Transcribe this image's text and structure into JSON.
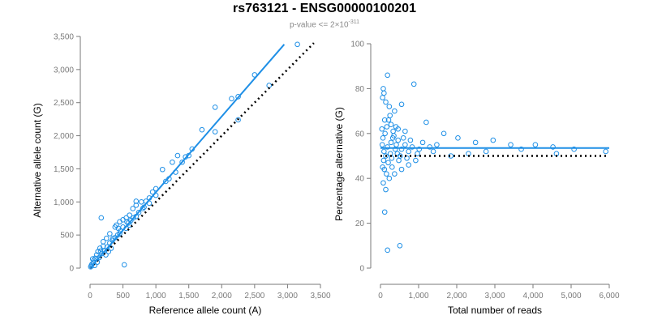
{
  "title": "rs763121 - ENSG00000100201",
  "subtitle": {
    "prefix": "p-value <= 2×10",
    "exponent": "-311"
  },
  "colors": {
    "points": "#1e8fe6",
    "fit_line": "#1e8fe6",
    "reference_line": "#000000"
  },
  "chart_data": [
    {
      "type": "scatter",
      "xlabel": "Reference allele count (A)",
      "ylabel": "Alternative allele count (G)",
      "xlim": [
        0,
        3500
      ],
      "ylim": [
        0,
        3500
      ],
      "x_ticks": [
        "0",
        "500",
        "1,000",
        "1,500",
        "2,000",
        "2,500",
        "3,000",
        "3,500"
      ],
      "y_ticks": [
        "0",
        "500",
        "1,000",
        "1,500",
        "2,000",
        "2,500",
        "3,000",
        "3,500"
      ],
      "fit_line": {
        "x": [
          0,
          2950
        ],
        "y": [
          0,
          3380
        ]
      },
      "reference_line": {
        "x": [
          0,
          3400
        ],
        "y": [
          0,
          3400
        ]
      },
      "points": [
        [
          3150,
          3380
        ],
        [
          2500,
          2920
        ],
        [
          2720,
          2760
        ],
        [
          2250,
          2590
        ],
        [
          2150,
          2560
        ],
        [
          1900,
          2430
        ],
        [
          1700,
          2090
        ],
        [
          1900,
          2060
        ],
        [
          2250,
          2240
        ],
        [
          1550,
          1800
        ],
        [
          1450,
          1680
        ],
        [
          1330,
          1700
        ],
        [
          1250,
          1600
        ],
        [
          1100,
          1490
        ],
        [
          1150,
          1310
        ],
        [
          1000,
          1200
        ],
        [
          950,
          1150
        ],
        [
          900,
          1060
        ],
        [
          850,
          1010
        ],
        [
          780,
          1000
        ],
        [
          700,
          1010
        ],
        [
          700,
          950
        ],
        [
          650,
          900
        ],
        [
          600,
          800
        ],
        [
          550,
          760
        ],
        [
          500,
          730
        ],
        [
          450,
          700
        ],
        [
          400,
          650
        ],
        [
          380,
          620
        ],
        [
          170,
          760
        ],
        [
          520,
          50
        ],
        [
          300,
          520
        ],
        [
          250,
          450
        ],
        [
          200,
          400
        ],
        [
          150,
          300
        ],
        [
          100,
          200
        ],
        [
          60,
          120
        ],
        [
          30,
          60
        ],
        [
          350,
          450
        ],
        [
          450,
          520
        ],
        [
          550,
          600
        ],
        [
          600,
          650
        ],
        [
          700,
          780
        ],
        [
          800,
          900
        ],
        [
          900,
          980
        ],
        [
          1000,
          1100
        ],
        [
          1200,
          1350
        ],
        [
          1300,
          1450
        ],
        [
          1400,
          1600
        ],
        [
          1500,
          1700
        ],
        [
          120,
          250
        ],
        [
          80,
          150
        ],
        [
          50,
          80
        ],
        [
          20,
          40
        ],
        [
          10,
          20
        ],
        [
          140,
          160
        ],
        [
          180,
          220
        ],
        [
          220,
          260
        ],
        [
          260,
          320
        ],
        [
          300,
          380
        ],
        [
          340,
          420
        ],
        [
          380,
          460
        ],
        [
          420,
          500
        ],
        [
          460,
          560
        ],
        [
          500,
          620
        ],
        [
          580,
          680
        ],
        [
          620,
          720
        ],
        [
          660,
          760
        ],
        [
          740,
          840
        ],
        [
          820,
          920
        ],
        [
          40,
          140
        ],
        [
          70,
          40
        ],
        [
          110,
          90
        ],
        [
          160,
          260
        ],
        [
          240,
          200
        ],
        [
          320,
          300
        ],
        [
          200,
          330
        ],
        [
          280,
          250
        ],
        [
          430,
          600
        ],
        [
          560,
          700
        ]
      ]
    },
    {
      "type": "scatter",
      "xlabel": "Total number of reads",
      "ylabel": "Percentage alternative (G)",
      "xlim": [
        0,
        6500
      ],
      "ylim": [
        0,
        100
      ],
      "x_ticks": [
        "0",
        "1,000",
        "2,000",
        "3,000",
        "4,000",
        "5,000",
        "6,000"
      ],
      "y_ticks": [
        "0",
        "20",
        "40",
        "60",
        "80",
        "100"
      ],
      "fit_line": {
        "x": [
          0,
          6500
        ],
        "y": [
          53.5,
          53.5
        ]
      },
      "reference_line": {
        "x": [
          0,
          6500
        ],
        "y": [
          50,
          50
        ]
      },
      "points": [
        [
          200,
          86
        ],
        [
          950,
          82
        ],
        [
          80,
          80
        ],
        [
          100,
          78
        ],
        [
          60,
          76
        ],
        [
          150,
          74
        ],
        [
          250,
          72
        ],
        [
          400,
          70
        ],
        [
          600,
          73
        ],
        [
          120,
          66
        ],
        [
          300,
          64
        ],
        [
          500,
          62
        ],
        [
          700,
          61
        ],
        [
          1300,
          65
        ],
        [
          1800,
          60
        ],
        [
          2200,
          58
        ],
        [
          2700,
          56
        ],
        [
          3200,
          57
        ],
        [
          3700,
          55
        ],
        [
          4400,
          55
        ],
        [
          4900,
          54
        ],
        [
          5500,
          53
        ],
        [
          6400,
          52
        ],
        [
          2000,
          50
        ],
        [
          2500,
          51
        ],
        [
          3000,
          52
        ],
        [
          4000,
          53
        ],
        [
          5000,
          51
        ],
        [
          120,
          25
        ],
        [
          200,
          8
        ],
        [
          550,
          10
        ],
        [
          150,
          35
        ],
        [
          80,
          38
        ],
        [
          250,
          40
        ],
        [
          400,
          42
        ],
        [
          600,
          44
        ],
        [
          800,
          46
        ],
        [
          1000,
          48
        ],
        [
          50,
          55
        ],
        [
          100,
          52
        ],
        [
          150,
          50
        ],
        [
          200,
          54
        ],
        [
          300,
          56
        ],
        [
          350,
          58
        ],
        [
          450,
          55
        ],
        [
          500,
          57
        ],
        [
          600,
          53
        ],
        [
          700,
          55
        ],
        [
          800,
          52
        ],
        [
          900,
          54
        ],
        [
          1100,
          53
        ],
        [
          1200,
          56
        ],
        [
          1400,
          54
        ],
        [
          1600,
          55
        ],
        [
          1500,
          52
        ],
        [
          60,
          45
        ],
        [
          90,
          48
        ],
        [
          130,
          60
        ],
        [
          180,
          63
        ],
        [
          220,
          47
        ],
        [
          280,
          51
        ],
        [
          320,
          49
        ],
        [
          380,
          59
        ],
        [
          420,
          53
        ],
        [
          480,
          51
        ],
        [
          520,
          48
        ],
        [
          650,
          58
        ],
        [
          750,
          49
        ],
        [
          850,
          57
        ],
        [
          1050,
          51
        ],
        [
          40,
          62
        ],
        [
          70,
          58
        ],
        [
          110,
          44
        ],
        [
          170,
          42
        ],
        [
          230,
          66
        ],
        [
          270,
          68
        ],
        [
          330,
          45
        ],
        [
          360,
          61
        ],
        [
          440,
          63
        ],
        [
          560,
          50
        ]
      ]
    }
  ]
}
